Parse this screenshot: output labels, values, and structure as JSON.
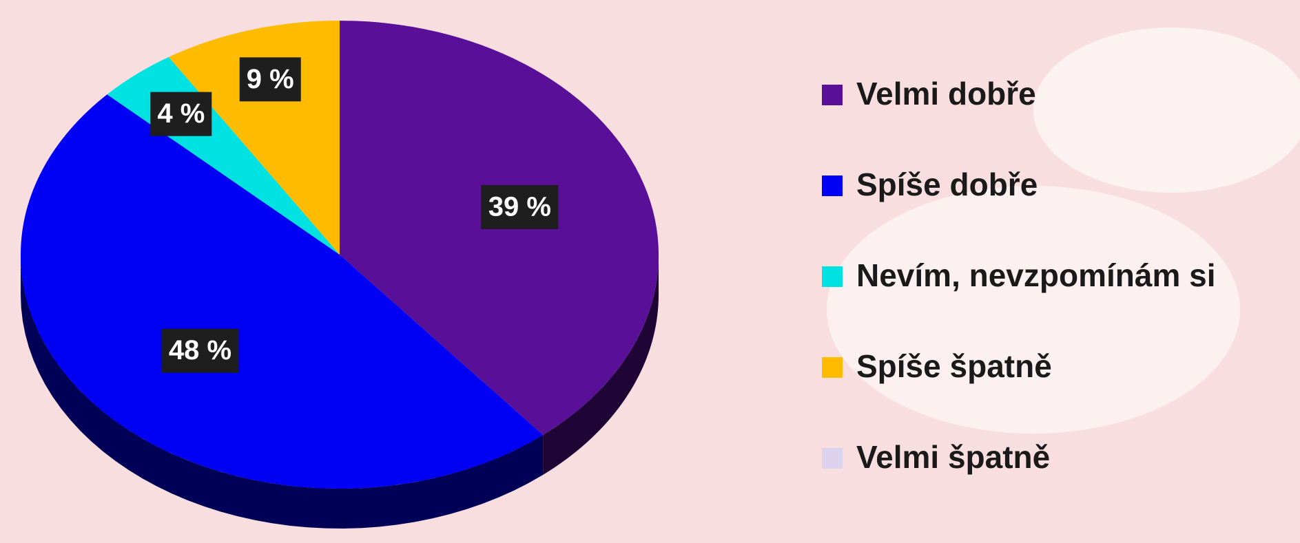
{
  "chart_data": {
    "type": "pie",
    "categories": [
      "Velmi dobře",
      "Spíše dobře",
      "Nevím, nevzpomínám si",
      "Spíše špatně",
      "Velmi špatně"
    ],
    "values": [
      39,
      48,
      4,
      9,
      0
    ],
    "value_labels": [
      "39 %",
      "48 %",
      "4 %",
      "9 %",
      null
    ],
    "colors": [
      "#5a0f98",
      "#0000f5",
      "#00e2e2",
      "#ffbb00",
      "#ddd2ee"
    ],
    "legend": "right"
  }
}
